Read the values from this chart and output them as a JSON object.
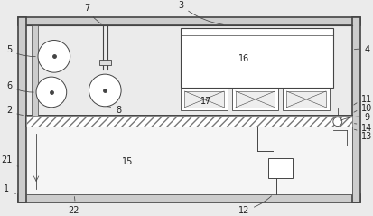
{
  "bg_color": "#ebebeb",
  "line_color": "#444444",
  "wall_fill": "#cccccc",
  "white": "#ffffff",
  "font_size": 7.0,
  "label_color": "#222222",
  "figsize": [
    4.14,
    2.39
  ],
  "dpi": 100
}
